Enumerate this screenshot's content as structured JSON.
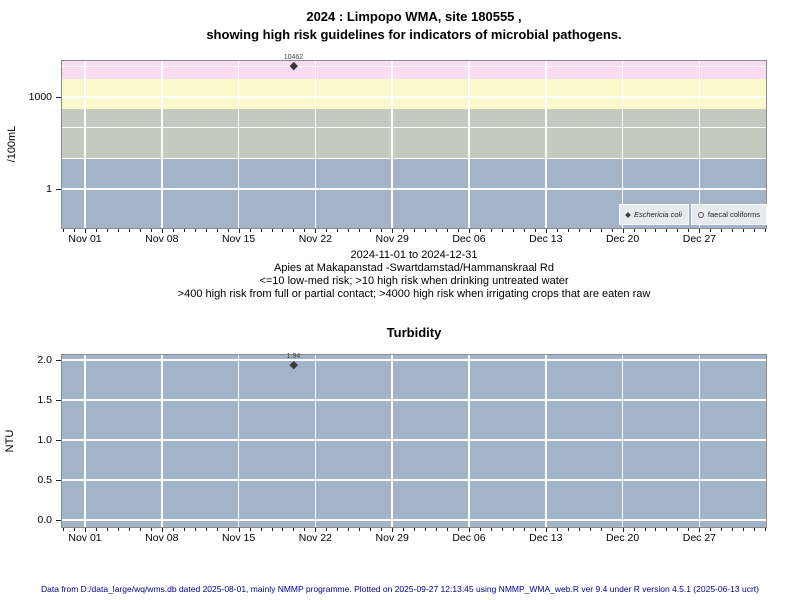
{
  "chart_data": [
    {
      "type": "scatter",
      "title_lines": [
        "2024 : Limpopo WMA, site 180555 ,",
        "showing high risk guidelines for indicators of microbial pathogens."
      ],
      "ylabel": "/100mL",
      "yscale": "log10",
      "ylim": [
        0.054,
        14900
      ],
      "yticks": [
        {
          "v": 1000,
          "label": "1000"
        },
        {
          "v": 1,
          "label": "1"
        }
      ],
      "ygridlines": [
        1,
        10,
        100,
        1000,
        10000
      ],
      "x_axis": {
        "tick_labels": [
          "Nov 01",
          "Nov 08",
          "Nov 15",
          "Nov 22",
          "Nov 29",
          "Dec 06",
          "Dec 13",
          "Dec 20",
          "Dec 27"
        ],
        "tick_day_offsets": [
          0,
          7,
          14,
          21,
          28,
          35,
          42,
          49,
          56
        ],
        "minor_tick_day_range": [
          -2,
          62
        ]
      },
      "bands": [
        {
          "from": 4000,
          "to": 14900,
          "color": "#f9dcf2",
          "meaning": ">4000 high risk when irrigating crops that are eaten raw"
        },
        {
          "from": 400,
          "to": 4000,
          "color": "#fbf8cd",
          "meaning": ">400 high risk from full or partial contact"
        },
        {
          "from": 10,
          "to": 400,
          "color": "#c2cbbe",
          "meaning": ">10 high risk when drinking untreated water"
        },
        {
          "from": 0.054,
          "to": 10,
          "color": "#a3b4c9",
          "meaning": "<=10 low-med risk"
        }
      ],
      "series": [
        {
          "name": "Eschericia coli",
          "symbol": "filled-diamond",
          "points": [
            {
              "x_day": 19,
              "value": 10462,
              "label": "10462"
            }
          ]
        },
        {
          "name": "faecal coliforms",
          "symbol": "open-circle",
          "points": []
        }
      ],
      "legend_position": "bottom-right"
    },
    {
      "type": "scatter",
      "title": "Turbidity",
      "ylabel": "NTU",
      "yscale": "linear",
      "ylim": [
        -0.09,
        2.06
      ],
      "plot_bg": "#a3b4c9",
      "yticks": [
        {
          "v": 2.0,
          "label": "2.0"
        },
        {
          "v": 1.5,
          "label": "1.5"
        },
        {
          "v": 1.0,
          "label": "1.0"
        },
        {
          "v": 0.5,
          "label": "0.5"
        },
        {
          "v": 0.0,
          "label": "0.0"
        }
      ],
      "x_axis": {
        "tick_labels": [
          "Nov 01",
          "Nov 08",
          "Nov 15",
          "Nov 22",
          "Nov 29",
          "Dec 06",
          "Dec 13",
          "Dec 20",
          "Dec 27"
        ],
        "tick_day_offsets": [
          0,
          7,
          14,
          21,
          28,
          35,
          42,
          49,
          56
        ],
        "minor_tick_day_range": [
          -2,
          62
        ]
      },
      "series": [
        {
          "name": "Turbidity",
          "symbol": "filled-diamond",
          "points": [
            {
              "x_day": 19,
              "value": 1.94,
              "label": "1.94"
            }
          ]
        }
      ]
    }
  ],
  "caption_lines": [
    "2024-11-01 to 2024-12-31",
    "Apies at Makapanstad -Swartdamstad/Hammanskraal Rd",
    "<=10 low-med risk; >10 high risk when drinking untreated water",
    ">400 high risk from full or partial contact; >4000 high risk when irrigating crops that are eaten raw"
  ],
  "footer": "Data from D:/data_large/wq/wms.db dated 2025-08-01, mainly NMMP programme. Plotted on 2025-09-27 12:13:45 using NMMP_WMA_web.R ver 9.4 under R version 4.5.1 (2025-06-13 ucrt)",
  "colors": {
    "gridline": "#ffffff",
    "point": "#3a3a3a",
    "point_label": "#444444",
    "tick": "#222222",
    "plot_border": "#8a8a8a",
    "legend_bg": "#e6e9ef",
    "footer_text": "#00008b"
  }
}
